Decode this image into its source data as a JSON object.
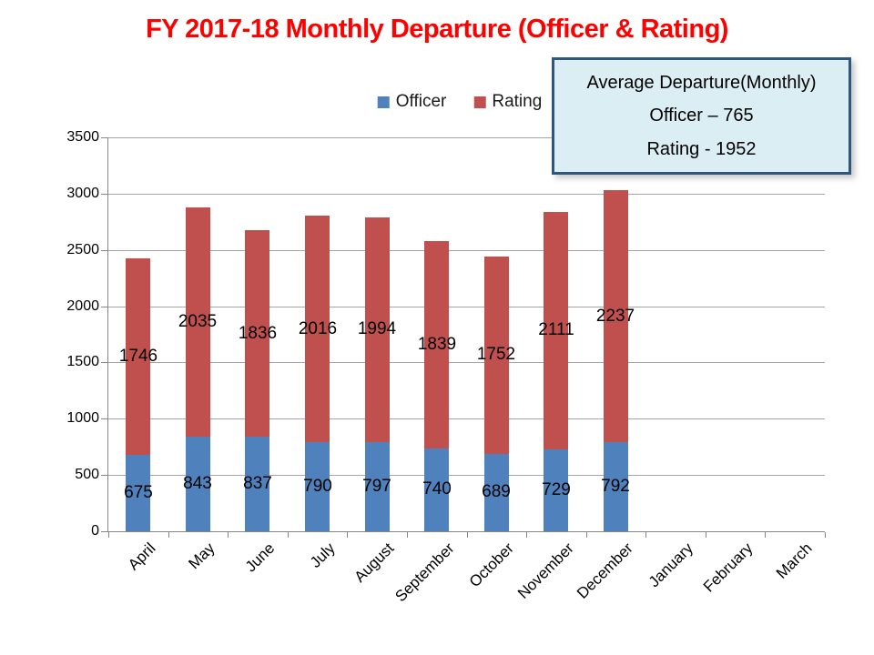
{
  "title": "FY 2017-18 Monthly Departure (Officer & Rating)",
  "info_box": {
    "line1": "Average Departure(Monthly)",
    "line2": "Officer – 765",
    "line3": "Rating - 1952"
  },
  "colors": {
    "officer": "#4f81bd",
    "rating": "#c0504d",
    "title": "#ff0000",
    "gridline": "#a6a6a6",
    "axis": "#878787",
    "info_box_bg": "#daeef3",
    "info_box_border": "#31567e"
  },
  "chart_data": {
    "type": "bar",
    "stacked": true,
    "title": "FY 2017-18 Monthly Departure (Officer & Rating)",
    "categories": [
      "April",
      "May",
      "June",
      "July",
      "August",
      "September",
      "October",
      "November",
      "December",
      "January",
      "February",
      "March"
    ],
    "series": [
      {
        "name": "Officer",
        "color": "#4f81bd",
        "values": [
          675,
          843,
          837,
          790,
          797,
          740,
          689,
          729,
          792,
          null,
          null,
          null
        ]
      },
      {
        "name": "Rating",
        "color": "#c0504d",
        "values": [
          1746,
          2035,
          1836,
          2016,
          1994,
          1839,
          1752,
          2111,
          2237,
          null,
          null,
          null
        ]
      }
    ],
    "ylim": [
      0,
      3500
    ],
    "ytick_step": 500,
    "yticks": [
      0,
      500,
      1000,
      1500,
      2000,
      2500,
      3000,
      3500
    ],
    "grid": true,
    "legend_position": "top-center",
    "data_labels": true
  }
}
